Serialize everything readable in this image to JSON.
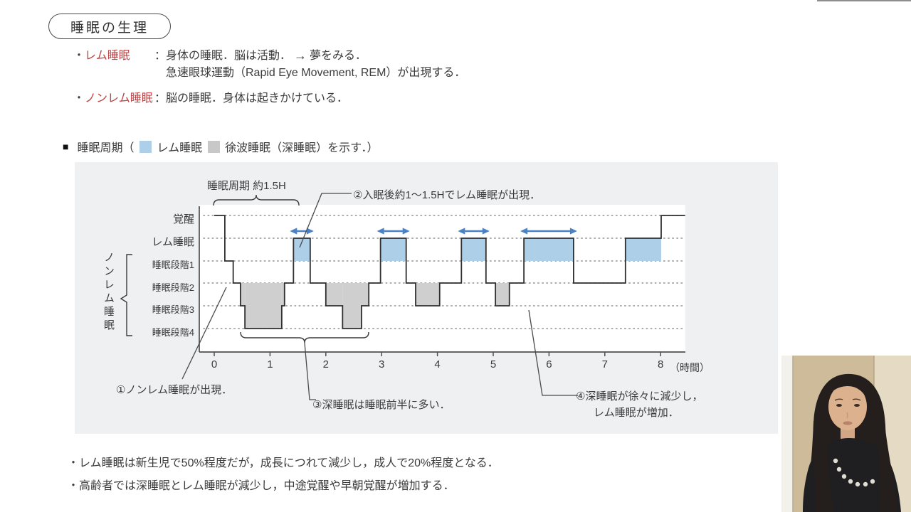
{
  "accent": {
    "red": "#bf4343",
    "blue_fill": "#aecfe8",
    "gray_fill": "#cfcfcf",
    "arrow_blue": "#4a82c4",
    "line_dark": "#2f2f2f"
  },
  "title": "睡眠の生理",
  "bullets": {
    "dot": "・",
    "rem_term": "レム睡眠",
    "rem_desc1": "：身体の睡眠．脳は活動．",
    "rem_arrow": "→",
    "rem_desc2": "夢をみる．",
    "rem_desc3": "急速眼球運動（Rapid Eye Movement, REM）が出現する．",
    "nonrem_term": "ノンレム睡眠",
    "nonrem_desc": "：脳の睡眠．身体は起きかけている．"
  },
  "legend": {
    "marker": "■",
    "label_prefix": "睡眠周期（",
    "rem_label": "レム睡眠",
    "sws_label": "徐波睡眠（深睡眠）を示す．）"
  },
  "chart": {
    "cycle_label": "睡眠周期 約1.5H",
    "ann1": "①ノンレム睡眠が出現．",
    "ann2": "②入眠後約1〜1.5Hでレム睡眠が出現．",
    "ann3": "③深睡眠は睡眠前半に多い．",
    "ann4a": "④深睡眠が徐々に減少し，",
    "ann4b": "レム睡眠が増加．",
    "y_labels": {
      "wake": "覚醒",
      "rem": "レム睡眠",
      "s1": "睡眠段階1",
      "s2": "睡眠段階2",
      "s3": "睡眠段階3",
      "s4": "睡眠段階4",
      "nonrem_group": "ノンレム睡眠"
    },
    "x_unit": "（時間）"
  },
  "chart_data": {
    "type": "line",
    "subtype": "step-hypnogram",
    "title": "睡眠周期",
    "x_ticks": [
      0,
      1,
      2,
      3,
      4,
      5,
      6,
      7,
      8
    ],
    "xlabel": "（時間）",
    "xlim": [
      0,
      8.45
    ],
    "y_levels": [
      "覚醒",
      "レム睡眠",
      "睡眠段階1",
      "睡眠段階2",
      "睡眠段階3",
      "睡眠段階4"
    ],
    "legend": [
      "レム睡眠",
      "徐波睡眠（深睡眠）"
    ],
    "grid": "dotted-horizontal",
    "steps": [
      [
        0.0,
        0.19,
        "覚醒"
      ],
      [
        0.19,
        0.34,
        "睡眠段階1"
      ],
      [
        0.34,
        0.47,
        "睡眠段階2"
      ],
      [
        0.47,
        0.55,
        "睡眠段階3"
      ],
      [
        0.55,
        1.21,
        "睡眠段階4"
      ],
      [
        1.21,
        1.26,
        "睡眠段階3"
      ],
      [
        1.26,
        1.42,
        "睡眠段階2"
      ],
      [
        1.42,
        1.72,
        "レム睡眠"
      ],
      [
        1.72,
        2.0,
        "睡眠段階2"
      ],
      [
        2.0,
        2.3,
        "睡眠段階3"
      ],
      [
        2.3,
        2.64,
        "睡眠段階4"
      ],
      [
        2.64,
        2.77,
        "睡眠段階3"
      ],
      [
        2.77,
        2.98,
        "睡眠段階2"
      ],
      [
        2.98,
        3.44,
        "レム睡眠"
      ],
      [
        3.44,
        3.61,
        "睡眠段階2"
      ],
      [
        3.61,
        4.04,
        "睡眠段階3"
      ],
      [
        4.04,
        4.43,
        "睡眠段階2"
      ],
      [
        4.43,
        4.87,
        "レム睡眠"
      ],
      [
        4.87,
        5.04,
        "睡眠段階2"
      ],
      [
        5.04,
        5.29,
        "睡眠段階3"
      ],
      [
        5.29,
        5.55,
        "睡眠段階2"
      ],
      [
        5.55,
        6.44,
        "レム睡眠"
      ],
      [
        6.44,
        7.37,
        "睡眠段階2"
      ],
      [
        7.37,
        8.01,
        "レム睡眠"
      ],
      [
        8.01,
        8.44,
        "覚醒"
      ]
    ],
    "rem_arrow_spans": [
      [
        1.42,
        1.72
      ],
      [
        2.98,
        3.44
      ],
      [
        4.43,
        4.87
      ],
      [
        5.55,
        6.44
      ]
    ]
  },
  "footer_bullets": [
    "・レム睡眠は新生児で50%程度だが，成長につれて減少し，成人で20%程度となる．",
    "・高齢者では深睡眠とレム睡眠が減少し，中途覚醒や早朝覚醒が増加する．"
  ]
}
